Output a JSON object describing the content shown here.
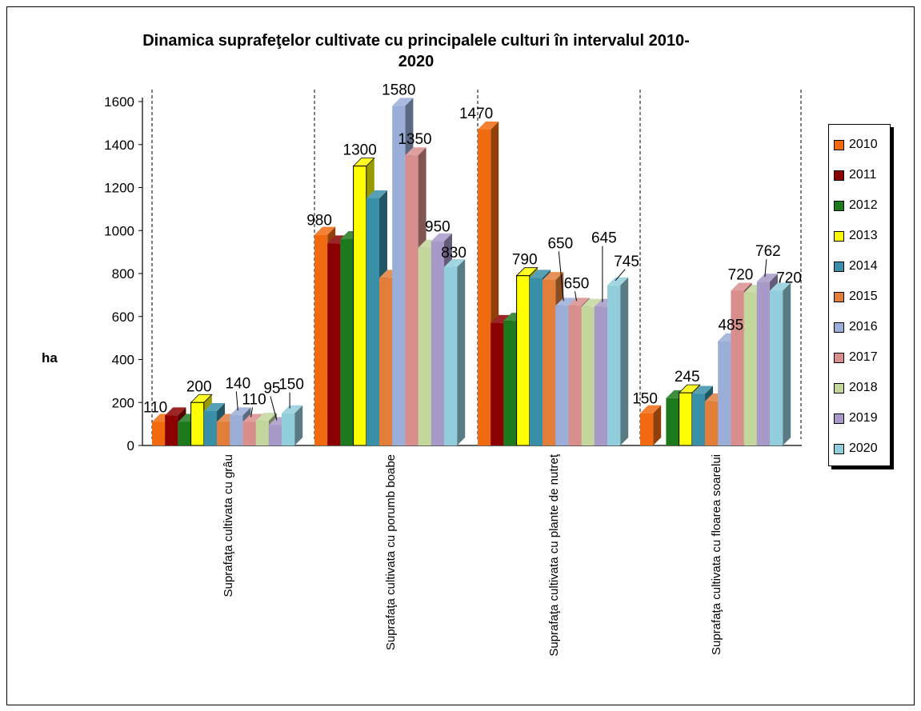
{
  "chart_data": {
    "type": "bar",
    "title": "Dinamica suprafeţelor cultivate cu principalele culturi  în  intervalul 2010-2020",
    "title_lines": [
      "Dinamica suprafeţelor cultivate cu principalele culturi  în  intervalul 2010-",
      "2020"
    ],
    "ylabel": "ha",
    "ylim": [
      0,
      1600
    ],
    "yticks": [
      0,
      200,
      400,
      600,
      800,
      1000,
      1200,
      1400,
      1600
    ],
    "legend_position": "right",
    "categories": [
      "Suprafaţa cultivata cu grâu",
      "Suprafaţa cultivata cu porumb boabe",
      "Suprafaţa cultivata cu plante de nutreţ",
      "Suprafaţa cultivata cu floarea soarelui"
    ],
    "series": [
      {
        "name": "2010",
        "color": "#f26a10",
        "values": [
          110,
          980,
          1470,
          150
        ]
      },
      {
        "name": "2011",
        "color": "#8b0000",
        "values": [
          140,
          940,
          570,
          null
        ]
      },
      {
        "name": "2012",
        "color": "#1c7a1c",
        "values": [
          110,
          960,
          580,
          220
        ]
      },
      {
        "name": "2013",
        "color": "#ffff00",
        "values": [
          200,
          1300,
          790,
          245
        ]
      },
      {
        "name": "2014",
        "color": "#3a8fa8",
        "values": [
          160,
          1150,
          780,
          240
        ]
      },
      {
        "name": "2015",
        "color": "#e27e3a",
        "values": [
          110,
          780,
          770,
          205
        ]
      },
      {
        "name": "2016",
        "color": "#9aaed8",
        "values": [
          140,
          1580,
          650,
          485
        ]
      },
      {
        "name": "2017",
        "color": "#d98e8e",
        "values": [
          110,
          1350,
          650,
          720
        ]
      },
      {
        "name": "2018",
        "color": "#c3d69b",
        "values": [
          115,
          920,
          645,
          710
        ]
      },
      {
        "name": "2019",
        "color": "#a799c8",
        "values": [
          95,
          950,
          645,
          762
        ]
      },
      {
        "name": "2020",
        "color": "#92cddc",
        "values": [
          150,
          830,
          745,
          720
        ]
      }
    ],
    "data_labels": [
      {
        "category": 0,
        "series": 0,
        "text": "110"
      },
      {
        "category": 0,
        "series": 3,
        "text": "200"
      },
      {
        "category": 0,
        "series": 6,
        "text": "140"
      },
      {
        "category": 0,
        "series": 7,
        "text": "110"
      },
      {
        "category": 0,
        "series": 9,
        "text": "95"
      },
      {
        "category": 0,
        "series": 10,
        "text": "150"
      },
      {
        "category": 1,
        "series": 0,
        "text": "980"
      },
      {
        "category": 1,
        "series": 3,
        "text": "1300"
      },
      {
        "category": 1,
        "series": 6,
        "text": "1580"
      },
      {
        "category": 1,
        "series": 7,
        "text": "1350"
      },
      {
        "category": 1,
        "series": 9,
        "text": "950"
      },
      {
        "category": 1,
        "series": 10,
        "text": "830"
      },
      {
        "category": 2,
        "series": 0,
        "text": "1470"
      },
      {
        "category": 2,
        "series": 3,
        "text": "790"
      },
      {
        "category": 2,
        "series": 6,
        "text": "650"
      },
      {
        "category": 2,
        "series": 7,
        "text": "650"
      },
      {
        "category": 2,
        "series": 9,
        "text": "645"
      },
      {
        "category": 2,
        "series": 10,
        "text": "745"
      },
      {
        "category": 3,
        "series": 0,
        "text": "150"
      },
      {
        "category": 3,
        "series": 3,
        "text": "245"
      },
      {
        "category": 3,
        "series": 6,
        "text": "485"
      },
      {
        "category": 3,
        "series": 7,
        "text": "720"
      },
      {
        "category": 3,
        "series": 9,
        "text": "762"
      },
      {
        "category": 3,
        "series": 10,
        "text": "720"
      }
    ]
  }
}
